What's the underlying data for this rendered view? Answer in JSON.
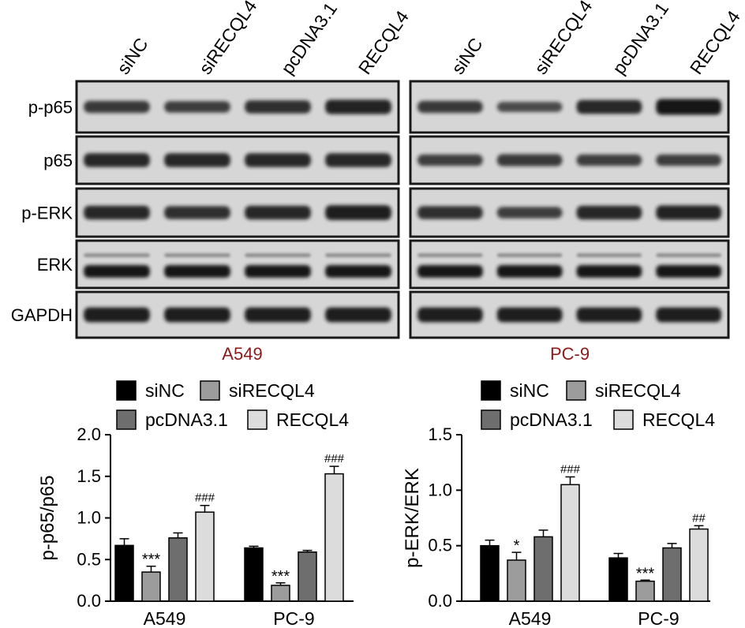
{
  "western_blot": {
    "lane_labels": [
      "siNC",
      "siRECQL4",
      "pcDNA3.1",
      "RECQL4",
      "siNC",
      "siRECQL4",
      "pcDNA3.1",
      "RECQL4"
    ],
    "row_labels": [
      "p-p65",
      "p65",
      "p-ERK",
      "ERK",
      "GAPDH"
    ],
    "panel_labels": [
      "A549",
      "PC-9"
    ],
    "panel_label_color": "#8b1a1a"
  },
  "legend_labels": [
    "siNC",
    "siRECQL4",
    "pcDNA3.1",
    "RECQL4"
  ],
  "colors": {
    "siNC": "#000000",
    "siRECQL4": "#9c9c9c",
    "pcDNA3.1": "#6e6e6e",
    "RECQL4": "#dcdcdc"
  },
  "chart_data": [
    {
      "type": "bar",
      "ylabel": "p-p65/p65",
      "categories": [
        "A549",
        "PC-9"
      ],
      "ylim": [
        0,
        2.0
      ],
      "yticks": [
        "0.0",
        "0.5",
        "1.0",
        "1.5",
        "2.0"
      ],
      "legend_position": "top",
      "series": [
        {
          "name": "siNC",
          "values": [
            0.67,
            0.64
          ],
          "errors": [
            0.08,
            0.02
          ],
          "annotations": [
            "",
            ""
          ]
        },
        {
          "name": "siRECQL4",
          "values": [
            0.35,
            0.19
          ],
          "errors": [
            0.07,
            0.03
          ],
          "annotations": [
            "***",
            "***"
          ]
        },
        {
          "name": "pcDNA3.1",
          "values": [
            0.76,
            0.59
          ],
          "errors": [
            0.06,
            0.02
          ],
          "annotations": [
            "",
            ""
          ]
        },
        {
          "name": "RECQL4",
          "values": [
            1.07,
            1.53
          ],
          "errors": [
            0.08,
            0.09
          ],
          "annotations": [
            "###",
            "###"
          ]
        }
      ]
    },
    {
      "type": "bar",
      "ylabel": "p-ERK/ERK",
      "categories": [
        "A549",
        "PC-9"
      ],
      "ylim": [
        0,
        1.5
      ],
      "yticks": [
        "0.0",
        "0.5",
        "1.0",
        "1.5"
      ],
      "legend_position": "top",
      "series": [
        {
          "name": "siNC",
          "values": [
            0.5,
            0.39
          ],
          "errors": [
            0.05,
            0.04
          ],
          "annotations": [
            "",
            ""
          ]
        },
        {
          "name": "siRECQL4",
          "values": [
            0.37,
            0.18
          ],
          "errors": [
            0.07,
            0.01
          ],
          "annotations": [
            "*",
            "***"
          ]
        },
        {
          "name": "pcDNA3.1",
          "values": [
            0.58,
            0.48
          ],
          "errors": [
            0.06,
            0.04
          ],
          "annotations": [
            "",
            ""
          ]
        },
        {
          "name": "RECQL4",
          "values": [
            1.05,
            0.65
          ],
          "errors": [
            0.07,
            0.03
          ],
          "annotations": [
            "###",
            "##"
          ]
        }
      ]
    }
  ]
}
